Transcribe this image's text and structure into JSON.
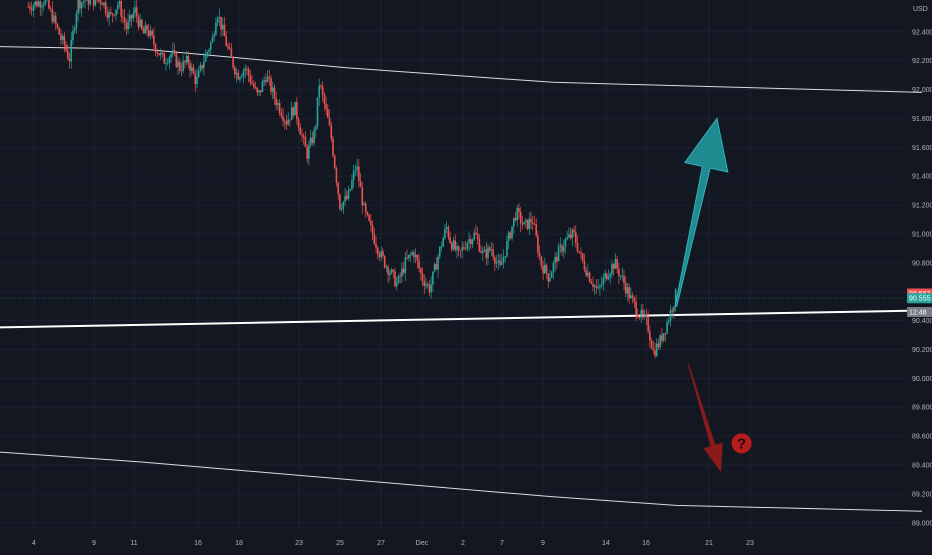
{
  "chart_data": {
    "type": "candlestick",
    "currency_label": "USD",
    "colors": {
      "background": "#131722",
      "grid": "#1c2030",
      "up": "#26a69a",
      "down": "#ef5350",
      "trendline": "#ffffff",
      "arrow_up": "#1f8a8f",
      "arrow_down": "#8b1a1a",
      "question": "#b71c1c",
      "tag_red": "#ef5350",
      "tag_green": "#26a69a",
      "tag_grey": "#787b86"
    },
    "y_range": [
      88.95,
      92.62
    ],
    "y_ticks": [
      "92.400",
      "92.200",
      "92.000",
      "91.800",
      "91.600",
      "91.400",
      "91.200",
      "91.000",
      "90.800",
      "90.600",
      "90.400",
      "90.200",
      "90.000",
      "89.800",
      "89.600",
      "89.400",
      "89.200",
      "89.000"
    ],
    "x_ticks": [
      "4",
      "9",
      "11",
      "16",
      "18",
      "23",
      "25",
      "27",
      "Dec",
      "2",
      "7",
      "9",
      "14",
      "16",
      "21",
      "23"
    ],
    "price_tags": [
      {
        "label": "90.567",
        "value": 90.567,
        "color": "red"
      },
      {
        "label": "90.555",
        "value": 90.555,
        "color": "green"
      },
      {
        "label": "12:48",
        "value": 90.48,
        "color": "grey"
      }
    ],
    "path": [
      [
        0,
        92.55
      ],
      [
        0.04,
        92.6
      ],
      [
        0.06,
        92.62
      ],
      [
        0.08,
        92.5
      ],
      [
        0.1,
        92.35
      ],
      [
        0.11,
        92.3
      ],
      [
        0.12,
        92.2
      ],
      [
        0.14,
        92.6
      ],
      [
        0.16,
        92.62
      ],
      [
        0.2,
        92.62
      ],
      [
        0.22,
        92.5
      ],
      [
        0.24,
        92.6
      ],
      [
        0.26,
        92.42
      ],
      [
        0.28,
        92.55
      ],
      [
        0.3,
        92.38
      ],
      [
        0.31,
        92.42
      ],
      [
        0.33,
        92.3
      ],
      [
        0.35,
        92.2
      ],
      [
        0.37,
        92.25
      ],
      [
        0.39,
        92.15
      ],
      [
        0.41,
        92.2
      ],
      [
        0.43,
        92.05
      ],
      [
        0.45,
        92.22
      ],
      [
        0.47,
        92.35
      ],
      [
        0.48,
        92.55
      ],
      [
        0.49,
        92.45
      ],
      [
        0.51,
        92.25
      ],
      [
        0.53,
        92.1
      ],
      [
        0.55,
        92.15
      ],
      [
        0.58,
        91.95
      ],
      [
        0.6,
        92.1
      ],
      [
        0.62,
        91.95
      ],
      [
        0.65,
        91.78
      ],
      [
        0.67,
        91.88
      ],
      [
        0.69,
        91.65
      ],
      [
        0.7,
        91.55
      ],
      [
        0.72,
        91.72
      ],
      [
        0.73,
        92.05
      ],
      [
        0.75,
        91.8
      ],
      [
        0.76,
        91.65
      ],
      [
        0.78,
        91.2
      ],
      [
        0.8,
        91.25
      ],
      [
        0.82,
        91.48
      ],
      [
        0.84,
        91.15
      ],
      [
        0.86,
        91.0
      ],
      [
        0.88,
        90.85
      ],
      [
        0.9,
        90.75
      ],
      [
        0.92,
        90.65
      ],
      [
        0.94,
        90.8
      ],
      [
        0.96,
        90.88
      ],
      [
        0.98,
        90.7
      ],
      [
        1.0,
        90.62
      ],
      [
        1.02,
        90.85
      ],
      [
        1.04,
        91.05
      ],
      [
        1.05,
        90.95
      ],
      [
        1.07,
        90.85
      ],
      [
        1.09,
        90.95
      ],
      [
        1.11,
        91.0
      ],
      [
        1.13,
        90.85
      ],
      [
        1.15,
        90.9
      ],
      [
        1.17,
        90.75
      ],
      [
        1.19,
        90.95
      ],
      [
        1.21,
        91.15
      ],
      [
        1.23,
        91.05
      ],
      [
        1.25,
        91.1
      ],
      [
        1.27,
        90.8
      ],
      [
        1.29,
        90.7
      ],
      [
        1.31,
        90.85
      ],
      [
        1.33,
        90.95
      ],
      [
        1.35,
        91.0
      ],
      [
        1.37,
        90.82
      ],
      [
        1.39,
        90.7
      ],
      [
        1.41,
        90.6
      ],
      [
        1.43,
        90.72
      ],
      [
        1.45,
        90.8
      ],
      [
        1.47,
        90.68
      ],
      [
        1.49,
        90.55
      ],
      [
        1.51,
        90.45
      ],
      [
        1.53,
        90.38
      ],
      [
        1.545,
        90.18
      ],
      [
        1.56,
        90.25
      ],
      [
        1.58,
        90.4
      ],
      [
        1.6,
        90.58
      ]
    ],
    "trendlines": [
      {
        "name": "upper-channel",
        "points": [
          [
            -0.1,
            92.3
          ],
          [
            0.3,
            92.28
          ],
          [
            0.8,
            92.15
          ],
          [
            1.3,
            92.05
          ],
          [
            2.2,
            91.98
          ]
        ],
        "width": 1
      },
      {
        "name": "support",
        "points": [
          [
            -0.1,
            90.35
          ],
          [
            2.2,
            90.47
          ]
        ],
        "width": 2
      },
      {
        "name": "lower-channel",
        "points": [
          [
            -0.1,
            89.5
          ],
          [
            0.3,
            89.42
          ],
          [
            0.8,
            89.3
          ],
          [
            1.3,
            89.18
          ],
          [
            1.6,
            89.12
          ],
          [
            2.2,
            89.08
          ]
        ],
        "width": 1
      }
    ],
    "annotations": [
      {
        "type": "arrow_up",
        "from": [
          1.6,
          90.5
        ],
        "to": [
          1.7,
          91.8
        ]
      },
      {
        "type": "arrow_down",
        "from": [
          1.63,
          90.1
        ],
        "to": [
          1.71,
          89.35
        ]
      },
      {
        "type": "question",
        "at": [
          1.76,
          89.55
        ],
        "label": "?"
      }
    ]
  }
}
